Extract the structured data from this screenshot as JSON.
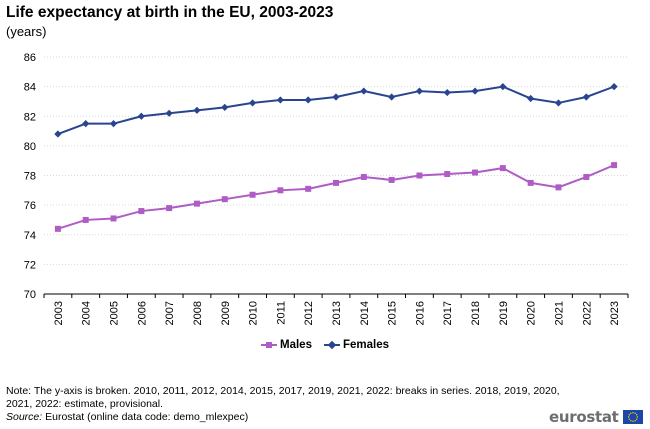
{
  "chart_data": {
    "type": "line",
    "title": "Life expectancy at birth in the EU, 2003-2023",
    "subtitle": "(years)",
    "xlabel": "",
    "ylabel": "",
    "x": [
      "2003",
      "2004",
      "2005",
      "2006",
      "2007",
      "2008",
      "2009",
      "2010",
      "2011",
      "2012",
      "2013",
      "2014",
      "2015",
      "2016",
      "2017",
      "2018",
      "2019",
      "2020",
      "2021",
      "2022",
      "2023"
    ],
    "ylim": [
      70,
      86
    ],
    "yticks": [
      "70",
      "72",
      "74",
      "76",
      "78",
      "80",
      "82",
      "84",
      "86"
    ],
    "grid": true,
    "legend_position": "bottom",
    "series": [
      {
        "name": "Males",
        "color": "#b05cc6",
        "marker": "square",
        "values": [
          74.4,
          75.0,
          75.1,
          75.6,
          75.8,
          76.1,
          76.4,
          76.7,
          77.0,
          77.1,
          77.5,
          77.9,
          77.7,
          78.0,
          78.1,
          78.2,
          78.5,
          77.5,
          77.2,
          77.9,
          78.7
        ]
      },
      {
        "name": "Females",
        "color": "#2a4590",
        "marker": "diamond",
        "values": [
          80.8,
          81.5,
          81.5,
          82.0,
          82.2,
          82.4,
          82.6,
          82.9,
          83.1,
          83.1,
          83.3,
          83.7,
          83.3,
          83.7,
          83.6,
          83.7,
          84.0,
          83.2,
          82.9,
          83.3,
          84.0
        ]
      }
    ]
  },
  "footer": {
    "note": "Note: The y-axis is broken.  2010, 2011, 2012, 2014, 2015, 2017, 2019, 2021, 2022: breaks in series.  2018, 2019, 2020, 2021, 2022: estimate, provisional.",
    "source_label": "Source:",
    "source_text": " Eurostat (online data code: demo_mlexpec)",
    "logo_text": "eurostat"
  },
  "colors": {
    "grid": "#d9d9d9",
    "axis": "#000000",
    "eu_flag": "#1a47a8",
    "eu_stars": "#ffd200"
  }
}
